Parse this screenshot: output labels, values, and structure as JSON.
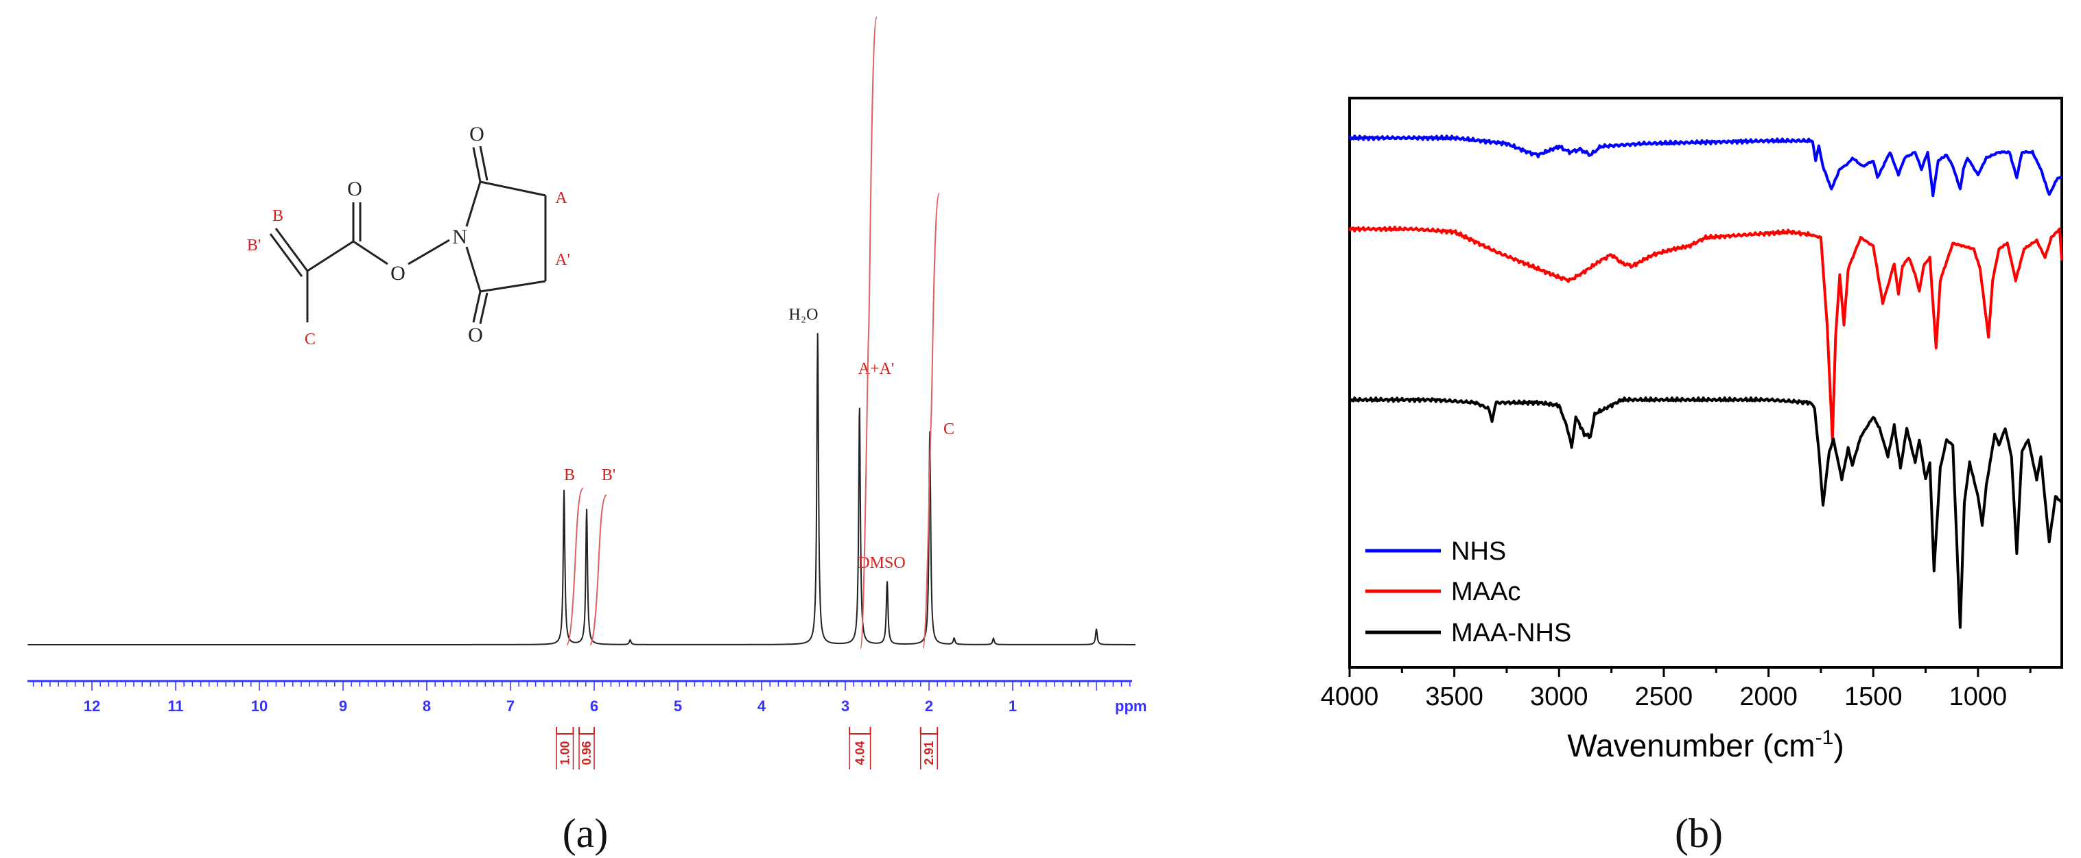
{
  "chart_data": [
    {
      "type": "line",
      "panel_label": "(a)",
      "xunit": "ppm",
      "xlim": [
        13,
        0
      ],
      "xticks": [
        12,
        11,
        10,
        9,
        8,
        7,
        6,
        5,
        4,
        3,
        2,
        1
      ],
      "spectrum_peaks": [
        {
          "ppm": 6.36,
          "height": 0.49,
          "label": "B",
          "label_color": "#d02020"
        },
        {
          "ppm": 6.09,
          "height": 0.43,
          "label": "B'",
          "label_color": "#d02020"
        },
        {
          "ppm": 3.33,
          "height": 0.99,
          "label": "H₂O",
          "label_color": "#222222"
        },
        {
          "ppm": 2.83,
          "height": 0.76,
          "label": "A+A'",
          "label_color": "#d02020"
        },
        {
          "ppm": 2.5,
          "height": 0.2,
          "label": "DMSO",
          "label_color": "#d02020"
        },
        {
          "ppm": 1.99,
          "height": 0.68,
          "label": "C",
          "label_color": "#d02020"
        },
        {
          "ppm": 5.57,
          "height": 0.015,
          "label": ""
        },
        {
          "ppm": 1.7,
          "height": 0.02,
          "label": ""
        },
        {
          "ppm": 1.23,
          "height": 0.02,
          "label": ""
        },
        {
          "ppm": 0.0,
          "height": 0.05,
          "label": ""
        }
      ],
      "integrals": [
        {
          "from": 6.45,
          "to": 6.25,
          "value": "1.00"
        },
        {
          "from": 6.18,
          "to": 6.0,
          "value": "0.96"
        },
        {
          "from": 2.95,
          "to": 2.7,
          "value": "4.04"
        },
        {
          "from": 2.1,
          "to": 1.9,
          "value": "2.91"
        }
      ],
      "structure_labels": [
        "B",
        "B'",
        "C",
        "A",
        "A'"
      ]
    },
    {
      "type": "line",
      "panel_label": "(b)",
      "xlabel": "Wavenumber (cm",
      "xlabel_sup": "-1",
      "xlabel_close": ")",
      "xlim": [
        4000,
        600
      ],
      "xticks": [
        4000,
        3500,
        3000,
        2500,
        2000,
        1500,
        1000
      ],
      "legend_position": "bottom-left",
      "series": [
        {
          "name": "NHS",
          "color": "#0000ff",
          "baseline": 0.93,
          "points": [
            [
              4000,
              0.93
            ],
            [
              3500,
              0.93
            ],
            [
              3250,
              0.92
            ],
            [
              3150,
              0.905
            ],
            [
              3100,
              0.9
            ],
            [
              3000,
              0.915
            ],
            [
              2950,
              0.905
            ],
            [
              2900,
              0.91
            ],
            [
              2850,
              0.9
            ],
            [
              2800,
              0.915
            ],
            [
              2600,
              0.92
            ],
            [
              2000,
              0.925
            ],
            [
              1790,
              0.925
            ],
            [
              1775,
              0.89
            ],
            [
              1760,
              0.915
            ],
            [
              1740,
              0.88
            ],
            [
              1700,
              0.84
            ],
            [
              1660,
              0.875
            ],
            [
              1620,
              0.885
            ],
            [
              1600,
              0.895
            ],
            [
              1550,
              0.88
            ],
            [
              1500,
              0.89
            ],
            [
              1480,
              0.86
            ],
            [
              1440,
              0.89
            ],
            [
              1420,
              0.905
            ],
            [
              1380,
              0.865
            ],
            [
              1350,
              0.895
            ],
            [
              1300,
              0.905
            ],
            [
              1270,
              0.875
            ],
            [
              1240,
              0.905
            ],
            [
              1215,
              0.83
            ],
            [
              1190,
              0.89
            ],
            [
              1150,
              0.9
            ],
            [
              1120,
              0.88
            ],
            [
              1085,
              0.84
            ],
            [
              1070,
              0.875
            ],
            [
              1050,
              0.895
            ],
            [
              1000,
              0.865
            ],
            [
              960,
              0.895
            ],
            [
              900,
              0.905
            ],
            [
              850,
              0.905
            ],
            [
              815,
              0.86
            ],
            [
              790,
              0.905
            ],
            [
              740,
              0.905
            ],
            [
              700,
              0.875
            ],
            [
              660,
              0.83
            ],
            [
              620,
              0.86
            ],
            [
              600,
              0.86
            ]
          ]
        },
        {
          "name": "MAAc",
          "color": "#ff0000",
          "baseline": 0.77,
          "points": [
            [
              4000,
              0.77
            ],
            [
              3700,
              0.77
            ],
            [
              3500,
              0.765
            ],
            [
              3300,
              0.73
            ],
            [
              3100,
              0.7
            ],
            [
              3000,
              0.685
            ],
            [
              2950,
              0.68
            ],
            [
              2900,
              0.69
            ],
            [
              2800,
              0.715
            ],
            [
              2750,
              0.725
            ],
            [
              2700,
              0.71
            ],
            [
              2650,
              0.705
            ],
            [
              2550,
              0.725
            ],
            [
              2450,
              0.735
            ],
            [
              2380,
              0.74
            ],
            [
              2300,
              0.755
            ],
            [
              2100,
              0.76
            ],
            [
              1900,
              0.765
            ],
            [
              1800,
              0.76
            ],
            [
              1750,
              0.755
            ],
            [
              1720,
              0.6
            ],
            [
              1695,
              0.4
            ],
            [
              1680,
              0.58
            ],
            [
              1660,
              0.69
            ],
            [
              1640,
              0.6
            ],
            [
              1620,
              0.7
            ],
            [
              1560,
              0.755
            ],
            [
              1500,
              0.74
            ],
            [
              1455,
              0.64
            ],
            [
              1430,
              0.67
            ],
            [
              1400,
              0.71
            ],
            [
              1380,
              0.655
            ],
            [
              1360,
              0.705
            ],
            [
              1330,
              0.72
            ],
            [
              1300,
              0.69
            ],
            [
              1280,
              0.66
            ],
            [
              1260,
              0.705
            ],
            [
              1230,
              0.72
            ],
            [
              1200,
              0.56
            ],
            [
              1180,
              0.68
            ],
            [
              1120,
              0.745
            ],
            [
              1020,
              0.735
            ],
            [
              990,
              0.7
            ],
            [
              950,
              0.58
            ],
            [
              930,
              0.68
            ],
            [
              900,
              0.735
            ],
            [
              860,
              0.745
            ],
            [
              820,
              0.68
            ],
            [
              780,
              0.735
            ],
            [
              720,
              0.75
            ],
            [
              680,
              0.72
            ],
            [
              650,
              0.755
            ],
            [
              610,
              0.77
            ],
            [
              600,
              0.715
            ]
          ]
        },
        {
          "name": "MAA-NHS",
          "color": "#000000",
          "baseline": 0.47,
          "points": [
            [
              4000,
              0.47
            ],
            [
              3600,
              0.47
            ],
            [
              3400,
              0.465
            ],
            [
              3340,
              0.455
            ],
            [
              3320,
              0.435
            ],
            [
              3300,
              0.465
            ],
            [
              3100,
              0.465
            ],
            [
              3000,
              0.46
            ],
            [
              2960,
              0.42
            ],
            [
              2940,
              0.385
            ],
            [
              2920,
              0.44
            ],
            [
              2880,
              0.41
            ],
            [
              2850,
              0.405
            ],
            [
              2830,
              0.445
            ],
            [
              2700,
              0.47
            ],
            [
              2000,
              0.47
            ],
            [
              1800,
              0.465
            ],
            [
              1780,
              0.455
            ],
            [
              1760,
              0.38
            ],
            [
              1740,
              0.285
            ],
            [
              1710,
              0.38
            ],
            [
              1690,
              0.4
            ],
            [
              1650,
              0.33
            ],
            [
              1620,
              0.385
            ],
            [
              1600,
              0.355
            ],
            [
              1560,
              0.405
            ],
            [
              1500,
              0.44
            ],
            [
              1470,
              0.42
            ],
            [
              1430,
              0.37
            ],
            [
              1400,
              0.425
            ],
            [
              1370,
              0.35
            ],
            [
              1340,
              0.42
            ],
            [
              1300,
              0.36
            ],
            [
              1280,
              0.4
            ],
            [
              1250,
              0.33
            ],
            [
              1230,
              0.36
            ],
            [
              1210,
              0.17
            ],
            [
              1180,
              0.35
            ],
            [
              1150,
              0.4
            ],
            [
              1120,
              0.39
            ],
            [
              1085,
              0.07
            ],
            [
              1065,
              0.29
            ],
            [
              1040,
              0.36
            ],
            [
              1000,
              0.3
            ],
            [
              980,
              0.25
            ],
            [
              960,
              0.32
            ],
            [
              920,
              0.41
            ],
            [
              900,
              0.39
            ],
            [
              870,
              0.42
            ],
            [
              840,
              0.37
            ],
            [
              815,
              0.2
            ],
            [
              790,
              0.38
            ],
            [
              760,
              0.4
            ],
            [
              720,
              0.33
            ],
            [
              700,
              0.37
            ],
            [
              660,
              0.22
            ],
            [
              630,
              0.3
            ],
            [
              600,
              0.29
            ]
          ]
        }
      ]
    }
  ]
}
